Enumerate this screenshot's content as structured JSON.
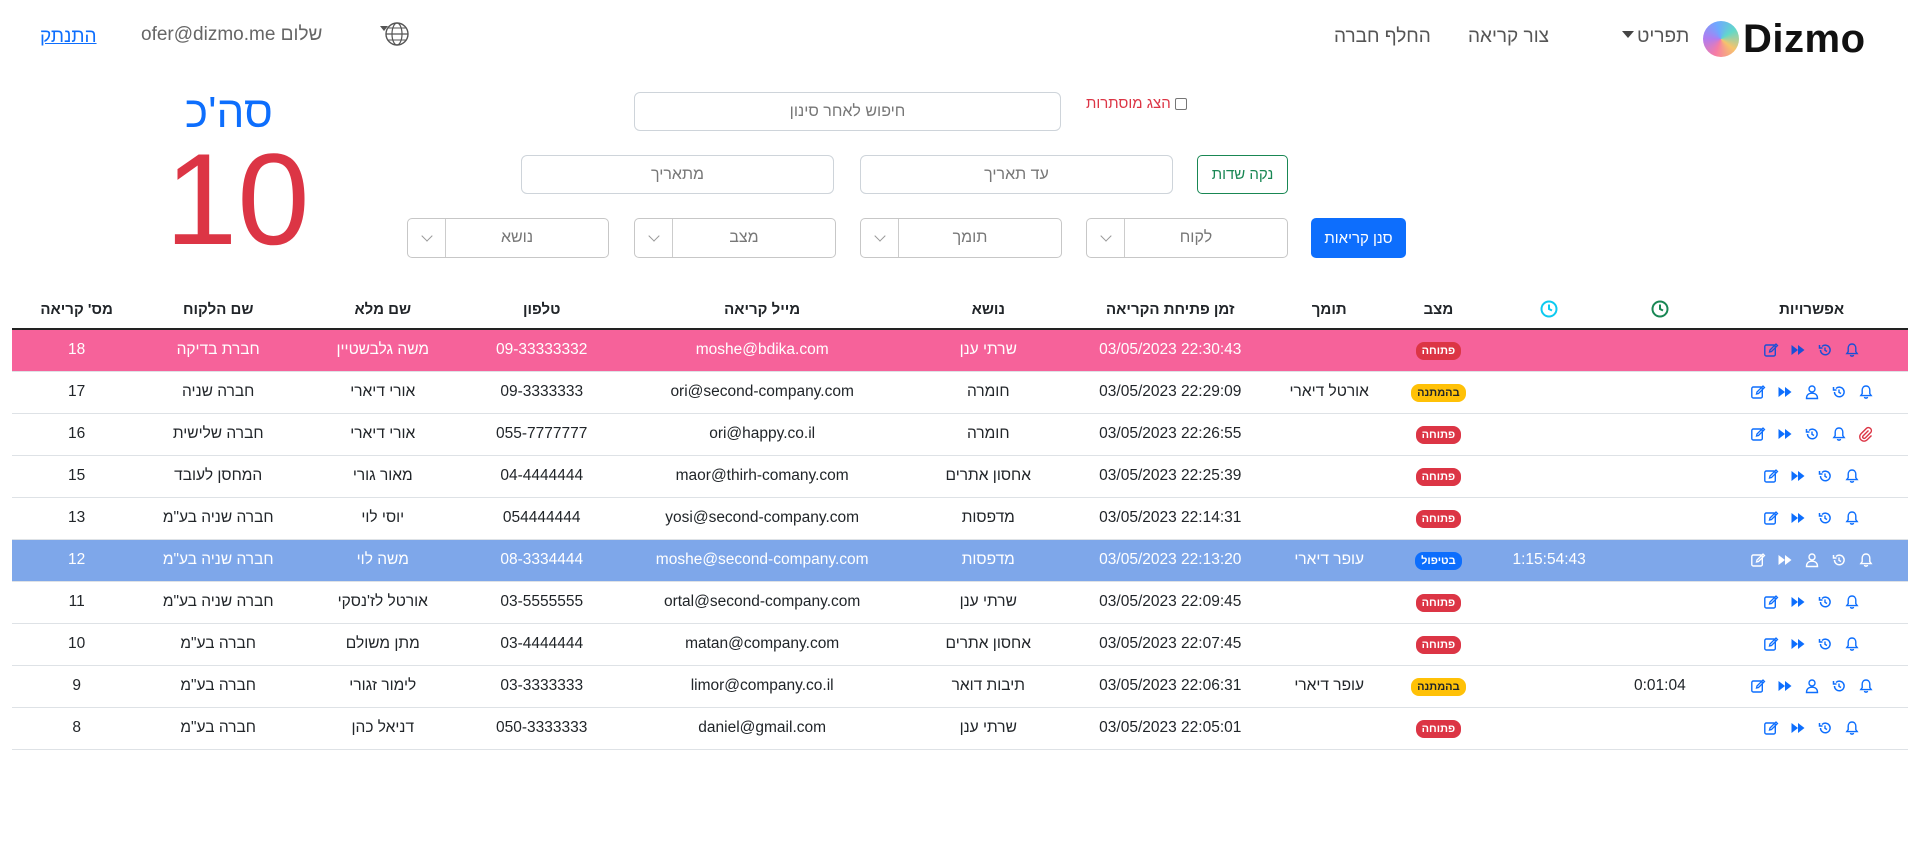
{
  "nav": {
    "brand": "Dizmo",
    "menu": "תפריט",
    "new_ticket": "צור קריאה",
    "switch_company": "החלף חברה",
    "greeting": "שלום ofer@dizmo.me",
    "logout": "התנתק"
  },
  "total": {
    "label": "סה'כ",
    "value": "10"
  },
  "filters": {
    "search_placeholder": "חיפוש לאחר סינון",
    "show_hidden": "הצג מוסתרות",
    "to_date": "עד תאריך",
    "from_date": "מתאריך",
    "clear": "נקה שדות",
    "customer": "לקוח",
    "support": "תומך",
    "state": "מצב",
    "topic": "נושא",
    "filter_btn": "סנן קריאות"
  },
  "table": {
    "headers": {
      "options": "אפשרויות",
      "state": "מצב",
      "support": "תומך",
      "open_time": "זמן פתיחת הקריאה",
      "topic": "נושא",
      "mail": "מייל קריאה",
      "phone": "טלפון",
      "full_name": "שם מלא",
      "customer": "שם הלקוח",
      "number": "מס' קריאה"
    },
    "rows": [
      {
        "style": "pink",
        "icons": [
          "bell",
          "history",
          "forward",
          "edit"
        ],
        "timer1": "",
        "timer2": "",
        "state": "פתוחה",
        "state_color": "red",
        "support": "",
        "time": "03/05/2023 22:30:43",
        "topic": "שרתי ענן",
        "mail": "moshe@bdika.com",
        "phone": "09-33333332",
        "name": "משה גלבשטיין",
        "customer": "חברת בדיקה",
        "number": "18"
      },
      {
        "style": "",
        "icons": [
          "bell",
          "history",
          "user",
          "forward",
          "edit"
        ],
        "timer1": "",
        "timer2": "",
        "state": "בהמתנה",
        "state_color": "yellow",
        "support": "אורטל דיארי",
        "time": "03/05/2023 22:29:09",
        "topic": "חומרה",
        "mail": "ori@second-company.com",
        "phone": "09-3333333",
        "name": "אורי דיארי",
        "customer": "חברה שניה",
        "number": "17"
      },
      {
        "style": "",
        "icons": [
          "clip",
          "bell",
          "history",
          "forward",
          "edit"
        ],
        "timer1": "",
        "timer2": "",
        "state": "פתוחה",
        "state_color": "red",
        "support": "",
        "time": "03/05/2023 22:26:55",
        "topic": "חומרה",
        "mail": "ori@happy.co.il",
        "phone": "055-7777777",
        "name": "אורי דיארי",
        "customer": "חברה שלישית",
        "number": "16"
      },
      {
        "style": "",
        "icons": [
          "bell",
          "history",
          "forward",
          "edit"
        ],
        "timer1": "",
        "timer2": "",
        "state": "פתוחה",
        "state_color": "red",
        "support": "",
        "time": "03/05/2023 22:25:39",
        "topic": "אחסון אתרים",
        "mail": "maor@thirh-comany.com",
        "phone": "04-4444444",
        "name": "מאור גורי",
        "customer": "המחסן לעובד",
        "number": "15"
      },
      {
        "style": "",
        "icons": [
          "bell",
          "history",
          "forward",
          "edit"
        ],
        "timer1": "",
        "timer2": "",
        "state": "פתוחה",
        "state_color": "red",
        "support": "",
        "time": "03/05/2023 22:14:31",
        "topic": "מדפסות",
        "mail": "yosi@second-company.com",
        "phone": "054444444",
        "name": "יוסי לוי",
        "customer": "חברה שניה בע\"מ",
        "number": "13"
      },
      {
        "style": "blue",
        "icons": [
          "bell",
          "history",
          "user",
          "forward",
          "edit"
        ],
        "timer1": "",
        "timer2": "1:15:54:43",
        "state": "בטיפול",
        "state_color": "blue",
        "support": "עופר דיארי",
        "time": "03/05/2023 22:13:20",
        "topic": "מדפסות",
        "mail": "moshe@second-company.com",
        "phone": "08-3334444",
        "name": "משה לוי",
        "customer": "חברה שניה בע\"מ",
        "number": "12"
      },
      {
        "style": "",
        "icons": [
          "bell",
          "history",
          "forward",
          "edit"
        ],
        "timer1": "",
        "timer2": "",
        "state": "פתוחה",
        "state_color": "red",
        "support": "",
        "time": "03/05/2023 22:09:45",
        "topic": "שרתי ענן",
        "mail": "ortal@second-company.com",
        "phone": "03-5555555",
        "name": "אורטל לז'נסקי",
        "customer": "חברה שניה בע\"מ",
        "number": "11"
      },
      {
        "style": "",
        "icons": [
          "bell",
          "history",
          "forward",
          "edit"
        ],
        "timer1": "",
        "timer2": "",
        "state": "פתוחה",
        "state_color": "red",
        "support": "",
        "time": "03/05/2023 22:07:45",
        "topic": "אחסון אתרים",
        "mail": "matan@company.com",
        "phone": "03-4444444",
        "name": "מתן משולם",
        "customer": "חברה בע\"מ",
        "number": "10"
      },
      {
        "style": "",
        "icons": [
          "bell",
          "history",
          "user",
          "forward",
          "edit"
        ],
        "timer1": "0:01:04",
        "timer2": "",
        "state": "בהמתנה",
        "state_color": "yellow",
        "support": "עופר דיארי",
        "time": "03/05/2023 22:06:31",
        "topic": "תיבות דואר",
        "mail": "limor@company.co.il",
        "phone": "03-3333333",
        "name": "לימור זגורי",
        "customer": "חברה בע\"מ",
        "number": "9"
      },
      {
        "style": "",
        "icons": [
          "bell",
          "history",
          "forward",
          "edit"
        ],
        "timer1": "",
        "timer2": "",
        "state": "פתוחה",
        "state_color": "red",
        "support": "",
        "time": "03/05/2023 22:05:01",
        "topic": "שרתי ענן",
        "mail": "daniel@gmail.com",
        "phone": "050-3333333",
        "name": "דניאל כהן",
        "customer": "חברה בע\"מ",
        "number": "8"
      }
    ]
  },
  "colors": {
    "primary": "#0d6efd",
    "danger": "#dc3545",
    "success": "#198754",
    "row_highlight": "#f6629a",
    "row_active": "#7ea7ea"
  }
}
